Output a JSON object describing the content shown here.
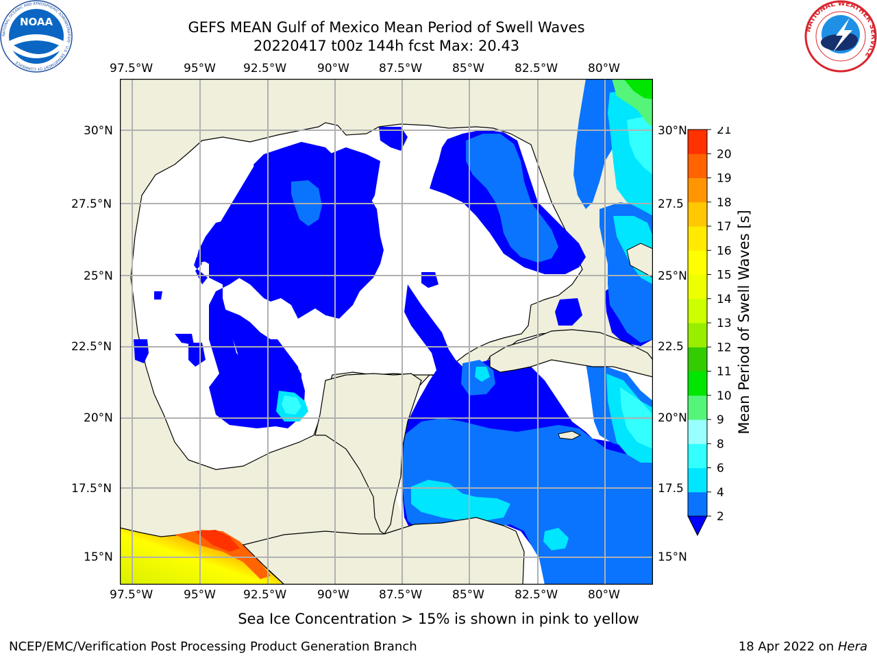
{
  "header": {
    "title_line1": "GEFS MEAN Gulf of Mexico Mean Period of Swell Waves",
    "title_line2": "20220417 t00z 144h fcst   Max: 20.43"
  },
  "map": {
    "lon_ticks": [
      "97.5°W",
      "95°W",
      "92.5°W",
      "90°W",
      "87.5°W",
      "85°W",
      "82.5°W",
      "80°W"
    ],
    "lat_ticks_left": [
      "30°N",
      "27.5°N",
      "25°N",
      "22.5°N",
      "20°N",
      "17.5°N",
      "15°N"
    ],
    "lat_ticks_right": [
      "30°N",
      "27.5",
      "25°N",
      "22.5",
      "20°N",
      "17.5",
      "15°N"
    ],
    "land_color": "#efefdc",
    "grid_color": "#b0b0b0"
  },
  "colorbar": {
    "label": "Mean Period of Swell Waves [s]",
    "levels": [
      "2",
      "4",
      "6",
      "8",
      "9",
      "10",
      "11",
      "12",
      "13",
      "14",
      "15",
      "16",
      "17",
      "18",
      "19",
      "20",
      "21"
    ],
    "colors": [
      "#0a74ff",
      "#00e6ff",
      "#33ffff",
      "#99ffff",
      "#55f57a",
      "#00e600",
      "#33cc00",
      "#99ee00",
      "#ccff00",
      "#eeff00",
      "#ffff00",
      "#ffea00",
      "#ffc800",
      "#ff9600",
      "#ff6400",
      "#ff3200",
      "#ff0000"
    ],
    "under_color": "#0000ff"
  },
  "footer": {
    "note": "Sea Ice Concentration > 15% is shown in pink to yellow",
    "credit": "NCEP/EMC/Verification Post Processing Product Generation Branch",
    "date": "18 Apr 2022 on",
    "machine": "Hera"
  },
  "logos": {
    "noaa_text": "NOAA",
    "noaa_ring": "NATIONAL OCEANIC AND ATMOSPHERIC ADMINISTRATION · U.S. DEPARTMENT OF COMMERCE",
    "nws_ring": "NATIONAL WEATHER SERVICE"
  }
}
